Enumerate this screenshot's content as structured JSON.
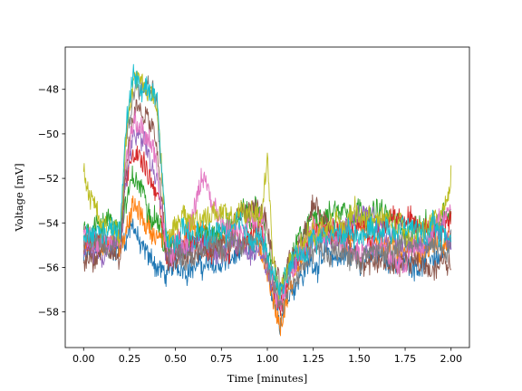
{
  "chart_data": {
    "type": "line",
    "xlabel": "Time [minutes]",
    "ylabel": "Voltage [mV]",
    "xlim": [
      -0.1,
      2.1
    ],
    "ylim": [
      -59.6,
      -46.1
    ],
    "xticks": [
      0.0,
      0.25,
      0.5,
      0.75,
      1.0,
      1.25,
      1.5,
      1.75,
      2.0
    ],
    "xtick_labels": [
      "0.00",
      "0.25",
      "0.50",
      "0.75",
      "1.00",
      "1.25",
      "1.50",
      "1.75",
      "2.00"
    ],
    "yticks": [
      -58,
      -56,
      -54,
      -52,
      -50,
      -48
    ],
    "ytick_labels": [
      "−58",
      "−56",
      "−54",
      "−52",
      "−50",
      "−48"
    ],
    "grid": false,
    "legend": false,
    "series": [
      {
        "color": "#1f77b4",
        "x": [
          0,
          0.1,
          0.2,
          0.23,
          0.27,
          0.31,
          0.35,
          0.4,
          0.45,
          0.55,
          0.7,
          0.85,
          0.97,
          1.03,
          1.07,
          1.12,
          1.25,
          1.5,
          1.75,
          2.0
        ],
        "y": [
          -55.6,
          -55.2,
          -55.0,
          -54.6,
          -53.8,
          -55.2,
          -55.5,
          -55.9,
          -56.4,
          -55.8,
          -56.0,
          -55.5,
          -55.2,
          -57.2,
          -58.1,
          -56.9,
          -55.7,
          -55.4,
          -55.8,
          -55.4
        ]
      },
      {
        "color": "#ff7f0e",
        "x": [
          0,
          0.1,
          0.2,
          0.23,
          0.27,
          0.31,
          0.35,
          0.4,
          0.45,
          0.55,
          0.7,
          0.85,
          0.97,
          1.03,
          1.07,
          1.12,
          1.25,
          1.5,
          1.75,
          2.0
        ],
        "y": [
          -55.3,
          -55.0,
          -54.8,
          -54.2,
          -53.3,
          -53.8,
          -54.1,
          -54.5,
          -55.2,
          -54.2,
          -54.5,
          -54.6,
          -55.0,
          -57.4,
          -58.5,
          -57.0,
          -54.5,
          -54.8,
          -55.4,
          -55.1
        ]
      },
      {
        "color": "#2ca02c",
        "x": [
          0,
          0.1,
          0.2,
          0.23,
          0.27,
          0.31,
          0.35,
          0.4,
          0.45,
          0.55,
          0.7,
          0.85,
          0.97,
          1.03,
          1.07,
          1.12,
          1.25,
          1.5,
          1.75,
          2.0
        ],
        "y": [
          -54.2,
          -53.8,
          -54.0,
          -53.2,
          -52.2,
          -52.4,
          -53.0,
          -53.6,
          -55.3,
          -54.6,
          -54.5,
          -53.8,
          -53.6,
          -56.5,
          -57.4,
          -55.9,
          -53.6,
          -53.2,
          -54.2,
          -53.9
        ]
      },
      {
        "color": "#d62728",
        "x": [
          0,
          0.1,
          0.2,
          0.23,
          0.27,
          0.31,
          0.35,
          0.4,
          0.45,
          0.55,
          0.7,
          0.85,
          0.97,
          1.03,
          1.07,
          1.12,
          1.25,
          1.5,
          1.75,
          2.0
        ],
        "y": [
          -55.1,
          -54.7,
          -54.6,
          -52.1,
          -50.6,
          -50.8,
          -51.6,
          -52.6,
          -55.6,
          -55.0,
          -55.2,
          -54.8,
          -54.6,
          -56.9,
          -57.9,
          -56.3,
          -54.2,
          -54.4,
          -54.0,
          -53.7
        ]
      },
      {
        "color": "#9467bd",
        "x": [
          0,
          0.1,
          0.2,
          0.23,
          0.27,
          0.31,
          0.35,
          0.4,
          0.45,
          0.55,
          0.7,
          0.85,
          0.97,
          1.03,
          1.07,
          1.12,
          1.25,
          1.5,
          1.75,
          2.0
        ],
        "y": [
          -55.4,
          -55.2,
          -55.1,
          -52.3,
          -50.1,
          -50.4,
          -51.2,
          -52.1,
          -55.4,
          -54.9,
          -55.0,
          -55.2,
          -55.1,
          -57.0,
          -57.7,
          -56.1,
          -54.9,
          -53.5,
          -54.9,
          -54.6
        ]
      },
      {
        "color": "#8c564b",
        "x": [
          0,
          0.1,
          0.2,
          0.23,
          0.27,
          0.31,
          0.35,
          0.4,
          0.45,
          0.55,
          0.7,
          0.85,
          0.97,
          1.03,
          1.07,
          1.12,
          1.25,
          1.5,
          1.75,
          2.0
        ],
        "y": [
          -55.8,
          -55.6,
          -55.3,
          -51.5,
          -48.9,
          -48.8,
          -49.4,
          -50.6,
          -55.8,
          -55.6,
          -55.4,
          -53.6,
          -53.3,
          -56.1,
          -57.1,
          -55.8,
          -53.2,
          -55.7,
          -55.9,
          -55.8
        ]
      },
      {
        "color": "#e377c2",
        "x": [
          0,
          0.1,
          0.2,
          0.23,
          0.27,
          0.31,
          0.35,
          0.4,
          0.45,
          0.55,
          0.66,
          0.7,
          0.75,
          0.85,
          0.97,
          1.03,
          1.07,
          1.12,
          1.25,
          1.5,
          1.75,
          2.0
        ],
        "y": [
          -54.6,
          -54.4,
          -54.2,
          -51.2,
          -49.6,
          -49.9,
          -50.2,
          -51.4,
          -55.3,
          -54.8,
          -51.6,
          -53.4,
          -54.4,
          -54.2,
          -54.0,
          -56.6,
          -57.5,
          -56.0,
          -54.5,
          -55.2,
          -55.6,
          -53.4
        ]
      },
      {
        "color": "#7f7f7f",
        "x": [
          0,
          0.1,
          0.2,
          0.23,
          0.27,
          0.31,
          0.35,
          0.4,
          0.45,
          0.55,
          0.7,
          0.85,
          0.97,
          1.03,
          1.07,
          1.12,
          1.25,
          1.5,
          1.75,
          2.0
        ],
        "y": [
          -55.0,
          -54.8,
          -54.6,
          -50.2,
          -47.9,
          -47.6,
          -47.8,
          -48.9,
          -55.0,
          -55.3,
          -55.1,
          -55.0,
          -54.8,
          -57.0,
          -57.9,
          -56.5,
          -55.1,
          -55.6,
          -55.0,
          -54.8
        ]
      },
      {
        "color": "#bcbd22",
        "x": [
          0,
          0.03,
          0.1,
          0.2,
          0.23,
          0.27,
          0.31,
          0.35,
          0.4,
          0.45,
          0.55,
          0.7,
          0.85,
          0.97,
          1.0,
          1.03,
          1.07,
          1.12,
          1.25,
          1.5,
          1.75,
          1.95,
          2.0
        ],
        "y": [
          -51.4,
          -52.6,
          -54.0,
          -54.3,
          -50.0,
          -47.4,
          -47.6,
          -48.0,
          -48.6,
          -54.3,
          -54.0,
          -53.6,
          -53.8,
          -53.4,
          -51.0,
          -55.6,
          -57.2,
          -56.0,
          -54.4,
          -53.6,
          -54.3,
          -54.0,
          -52.2
        ]
      },
      {
        "color": "#17becf",
        "x": [
          0,
          0.1,
          0.2,
          0.23,
          0.27,
          0.31,
          0.35,
          0.4,
          0.45,
          0.55,
          0.7,
          0.85,
          0.97,
          1.03,
          1.07,
          1.12,
          1.25,
          1.5,
          1.75,
          2.0
        ],
        "y": [
          -54.7,
          -54.5,
          -54.4,
          -49.8,
          -47.5,
          -47.7,
          -47.9,
          -48.6,
          -54.9,
          -54.7,
          -54.5,
          -54.4,
          -54.6,
          -56.5,
          -57.2,
          -55.9,
          -54.7,
          -54.3,
          -54.2,
          -54.6
        ]
      }
    ]
  }
}
